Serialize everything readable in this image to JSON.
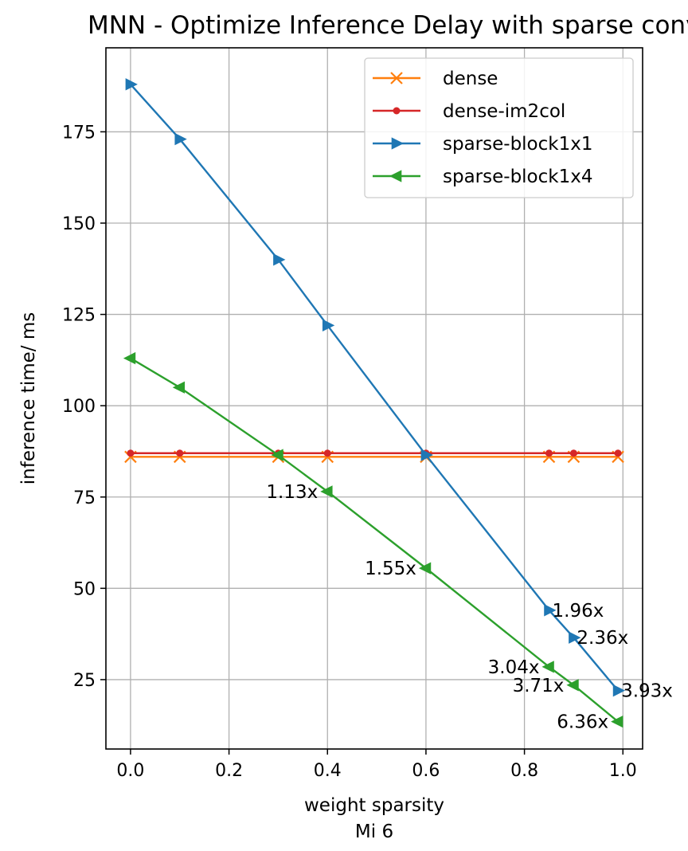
{
  "chart_data": {
    "type": "line",
    "title": "MNN - Optimize Inference Delay with sparse conv",
    "xlabel": "weight sparsity",
    "xlabel_sub": "Mi 6",
    "ylabel": "inference time/ ms",
    "xlim": [
      -0.05,
      1.04
    ],
    "ylim": [
      6,
      198
    ],
    "x_ticks": [
      0.0,
      0.2,
      0.4,
      0.6,
      0.8,
      1.0
    ],
    "x_tick_labels": [
      "0.0",
      "0.2",
      "0.4",
      "0.6",
      "0.8",
      "1.0"
    ],
    "y_ticks": [
      25,
      50,
      75,
      100,
      125,
      150,
      175
    ],
    "y_tick_labels": [
      "25",
      "50",
      "75",
      "100",
      "125",
      "150",
      "175"
    ],
    "grid": true,
    "legend_position": "top-right",
    "series": [
      {
        "name": "dense",
        "color": "#ff7f0e",
        "marker": "x",
        "x": [
          0.0,
          0.1,
          0.3,
          0.4,
          0.6,
          0.85,
          0.9,
          0.99
        ],
        "y": [
          86,
          86,
          86,
          86,
          86,
          86,
          86,
          86
        ]
      },
      {
        "name": "dense-im2col",
        "color": "#d62728",
        "marker": "dot",
        "x": [
          0.0,
          0.1,
          0.3,
          0.4,
          0.6,
          0.85,
          0.9,
          0.99
        ],
        "y": [
          87,
          87,
          87,
          87,
          87,
          87,
          87,
          87
        ]
      },
      {
        "name": "sparse-block1x1",
        "color": "#1f77b4",
        "marker": "triangle-right",
        "x": [
          0.0,
          0.1,
          0.3,
          0.4,
          0.6,
          0.85,
          0.9,
          0.99
        ],
        "y": [
          188,
          173,
          140,
          122,
          86.5,
          44,
          36.5,
          22
        ]
      },
      {
        "name": "sparse-block1x4",
        "color": "#2ca02c",
        "marker": "triangle-left",
        "x": [
          0.0,
          0.1,
          0.3,
          0.4,
          0.6,
          0.85,
          0.9,
          0.99
        ],
        "y": [
          113,
          105,
          86.5,
          76.5,
          55.5,
          28.5,
          23.5,
          13.5
        ]
      }
    ],
    "annotations": [
      {
        "text": "1.13x",
        "x": 0.4,
        "y": 76.5,
        "side": "left"
      },
      {
        "text": "1.55x",
        "x": 0.6,
        "y": 55.5,
        "side": "left"
      },
      {
        "text": "1.96x",
        "x": 0.85,
        "y": 44,
        "side": "right"
      },
      {
        "text": "2.36x",
        "x": 0.9,
        "y": 36.5,
        "side": "right"
      },
      {
        "text": "3.04x",
        "x": 0.85,
        "y": 28.5,
        "side": "left"
      },
      {
        "text": "3.71x",
        "x": 0.9,
        "y": 23.5,
        "side": "left"
      },
      {
        "text": "3.93x",
        "x": 0.99,
        "y": 22,
        "side": "right"
      },
      {
        "text": "6.36x",
        "x": 0.99,
        "y": 13.5,
        "side": "left"
      }
    ]
  }
}
